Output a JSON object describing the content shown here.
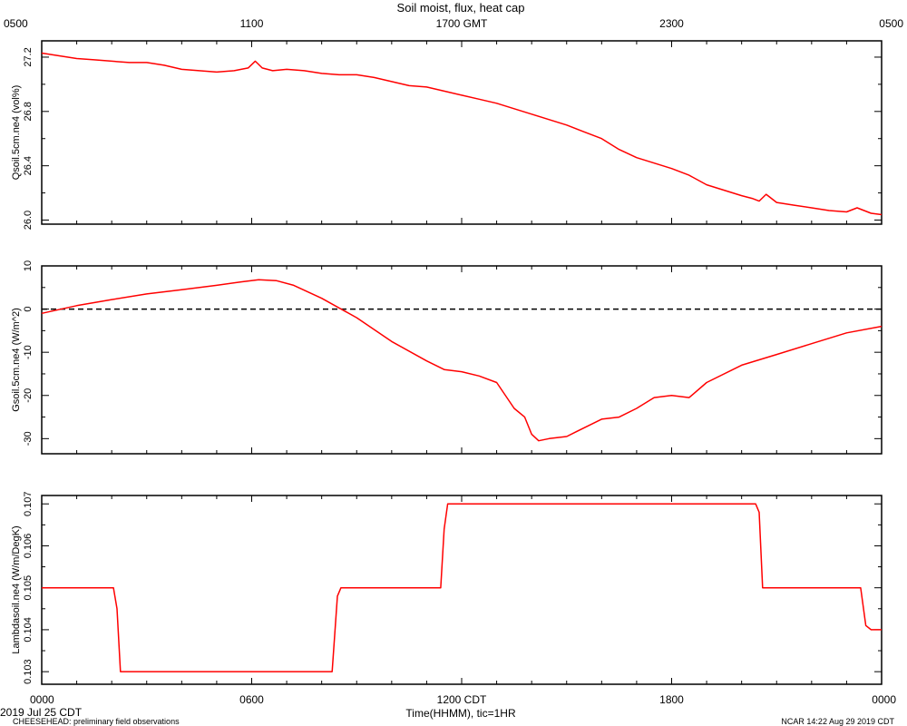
{
  "title": "Soil moist, flux, heat cap",
  "top_axis": {
    "ticks": [
      {
        "label": "0500",
        "x": 0
      },
      {
        "label": "1100",
        "x": 6
      },
      {
        "label": "1700 GMT",
        "x": 12
      },
      {
        "label": "2300",
        "x": 18
      },
      {
        "label": "0500",
        "x": 24
      }
    ]
  },
  "bottom_axis": {
    "title": "Time(HHMM), tic=1HR",
    "ticks": [
      {
        "label": "0000",
        "x": 0
      },
      {
        "label": "0600",
        "x": 6
      },
      {
        "label": "1200 CDT",
        "x": 12
      },
      {
        "label": "1800",
        "x": 18
      },
      {
        "label": "0000",
        "x": 24
      }
    ]
  },
  "footer": {
    "date": "2019 Jul 25 CDT",
    "project": "CHEESEHEAD: preliminary field observations",
    "credit": "NCAR 14:22 Aug 29 2019 CDT"
  },
  "line_color": "#ff0000",
  "chart_data": [
    {
      "type": "line",
      "ylabel": "Qsoil.5cm.ne4 (vol%)",
      "xlim": [
        0,
        24
      ],
      "ylim": [
        25.97,
        27.32
      ],
      "yticks": [
        26.0,
        26.4,
        26.8,
        27.2
      ],
      "yticklabels": [
        "26.0",
        "26.4",
        "26.8",
        "27.2"
      ],
      "ytick_rotated": true,
      "series": [
        {
          "x": [
            0,
            0.5,
            1,
            1.5,
            2,
            2.5,
            3,
            3.5,
            4,
            4.5,
            5,
            5.5,
            5.9,
            6.1,
            6.3,
            6.6,
            7,
            7.5,
            8,
            8.5,
            9,
            9.5,
            10,
            10.5,
            11,
            11.5,
            12,
            12.5,
            13,
            13.5,
            14,
            14.5,
            15,
            15.5,
            16,
            16.5,
            17,
            17.5,
            18,
            18.5,
            19,
            19.5,
            20,
            20.3,
            20.5,
            20.7,
            21,
            21.5,
            22,
            22.5,
            23,
            23.3,
            23.5,
            23.7,
            24
          ],
          "y": [
            27.23,
            27.21,
            27.19,
            27.18,
            27.17,
            27.16,
            27.16,
            27.14,
            27.11,
            27.1,
            27.09,
            27.1,
            27.12,
            27.17,
            27.12,
            27.1,
            27.11,
            27.1,
            27.08,
            27.07,
            27.07,
            27.05,
            27.02,
            26.99,
            26.98,
            26.95,
            26.92,
            26.89,
            26.86,
            26.82,
            26.78,
            26.74,
            26.7,
            26.65,
            26.6,
            26.52,
            26.46,
            26.42,
            26.38,
            26.33,
            26.26,
            26.22,
            26.18,
            26.16,
            26.14,
            26.19,
            26.13,
            26.11,
            26.09,
            26.07,
            26.06,
            26.09,
            26.07,
            26.05,
            26.04
          ]
        }
      ]
    },
    {
      "type": "line",
      "ylabel": "Gsoil.5cm.ne4 (W/m^2)",
      "xlim": [
        0,
        24
      ],
      "ylim": [
        -33.5,
        10
      ],
      "yticks": [
        10,
        0,
        -10,
        -20,
        -30
      ],
      "yticklabels": [
        "10",
        "0",
        "-10",
        "-20",
        "-30"
      ],
      "ytick_rotated": true,
      "reference_line": {
        "y": 0,
        "style": "dashed"
      },
      "series": [
        {
          "x": [
            0,
            1,
            2,
            3,
            4,
            5,
            5.7,
            6.2,
            6.7,
            7.2,
            8,
            9,
            10,
            11,
            11.5,
            12,
            12.5,
            13,
            13.5,
            13.8,
            14,
            14.2,
            14.5,
            15,
            15.5,
            16,
            16.5,
            17,
            17.5,
            18,
            18.5,
            19,
            20,
            21,
            22,
            23,
            24
          ],
          "y": [
            -1,
            0.8,
            2.2,
            3.5,
            4.5,
            5.5,
            6.3,
            6.8,
            6.6,
            5.5,
            2.5,
            -2,
            -7.5,
            -12,
            -14,
            -14.5,
            -15.5,
            -17,
            -23,
            -25,
            -29,
            -30.5,
            -30,
            -29.5,
            -27.5,
            -25.5,
            -25,
            -23,
            -20.5,
            -20,
            -20.5,
            -17,
            -13,
            -10.5,
            -8,
            -5.5,
            -4
          ]
        }
      ]
    },
    {
      "type": "line",
      "ylabel": "Lambdasoil.ne4 (W/m/DegK)",
      "xlim": [
        0,
        24
      ],
      "ylim": [
        0.1027,
        0.1072
      ],
      "yticks": [
        0.103,
        0.104,
        0.105,
        0.106,
        0.107
      ],
      "yticklabels": [
        "0.103",
        "0.104",
        "0.105",
        "0.106",
        "0.107"
      ],
      "ytick_rotated": true,
      "series": [
        {
          "x": [
            0,
            2.05,
            2.15,
            2.25,
            8.3,
            8.45,
            8.55,
            11.4,
            11.5,
            11.6,
            20.4,
            20.5,
            20.6,
            23.4,
            23.55,
            23.7,
            24
          ],
          "y": [
            0.105,
            0.105,
            0.1045,
            0.103,
            0.103,
            0.1048,
            0.105,
            0.105,
            0.1064,
            0.107,
            0.107,
            0.1068,
            0.105,
            0.105,
            0.1041,
            0.104,
            0.104
          ]
        }
      ]
    }
  ]
}
